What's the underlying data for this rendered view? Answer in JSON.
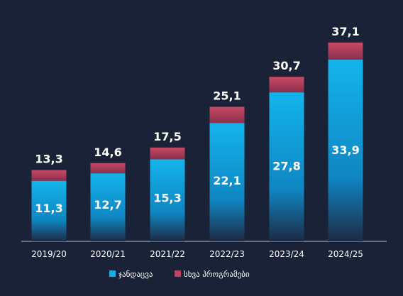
{
  "colors": {
    "background": "#1a2238",
    "series_0": "#10aee6",
    "series_1": "#c5425f",
    "axis": "#b8c0d0"
  },
  "chart_data": {
    "type": "bar",
    "stacked": true,
    "categories": [
      "2019/20",
      "2020/21",
      "2021/22",
      "2022/23",
      "2023/24",
      "2024/25"
    ],
    "series": [
      {
        "name": "ჯანდაცვა",
        "values": [
          11.3,
          12.7,
          15.3,
          22.1,
          27.8,
          33.9
        ]
      },
      {
        "name": "სხვა პროგრამები",
        "values": [
          2.0,
          1.9,
          2.2,
          3.0,
          2.9,
          3.2
        ]
      }
    ],
    "inner_labels": [
      "11,3",
      "12,7",
      "15,3",
      "22,1",
      "27,8",
      "33,9"
    ],
    "total_labels": [
      "13,3",
      "14,6",
      "17,5",
      "25,1",
      "30,7",
      "37,1"
    ],
    "legend_placement": "bottom",
    "grid": false,
    "ylim": [
      0,
      40
    ]
  }
}
